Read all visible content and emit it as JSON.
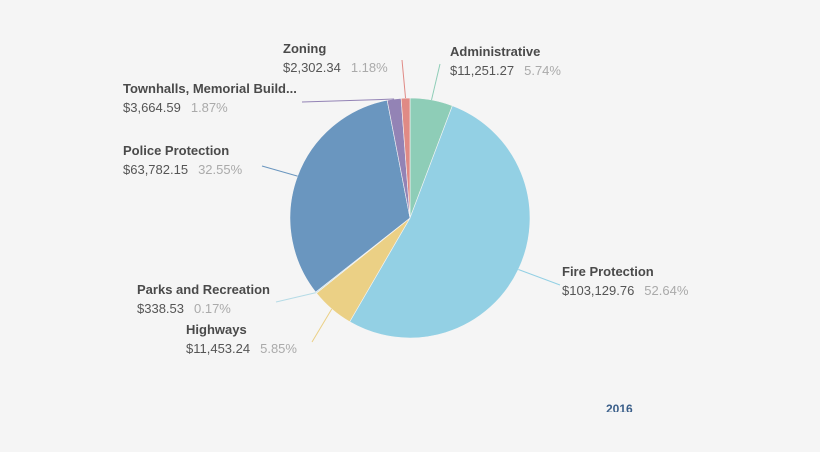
{
  "chart_data": {
    "type": "pie",
    "footer": "2016",
    "slices": [
      {
        "name": "Administrative",
        "value": "$11,251.27",
        "amount": 11251.27,
        "percent": "5.74%",
        "pct": 5.74,
        "color": "#8ecdb7"
      },
      {
        "name": "Fire Protection",
        "value": "$103,129.76",
        "amount": 103129.76,
        "percent": "52.64%",
        "pct": 52.64,
        "color": "#93d0e4"
      },
      {
        "name": "Highways",
        "value": "$11,453.24",
        "amount": 11453.24,
        "percent": "5.85%",
        "pct": 5.85,
        "color": "#ebd085"
      },
      {
        "name": "Parks and Recreation",
        "value": "$338.53",
        "amount": 338.53,
        "percent": "0.17%",
        "pct": 0.17,
        "color": "#b5dbe6"
      },
      {
        "name": "Police Protection",
        "value": "$63,782.15",
        "amount": 63782.15,
        "percent": "32.55%",
        "pct": 32.55,
        "color": "#6a96bf"
      },
      {
        "name": "Townhalls, Memorial Build...",
        "value": "$3,664.59",
        "amount": 3664.59,
        "percent": "1.87%",
        "pct": 1.87,
        "color": "#9383b5"
      },
      {
        "name": "Zoning",
        "value": "$2,302.34",
        "amount": 2302.34,
        "percent": "1.18%",
        "pct": 1.18,
        "color": "#e08a85"
      }
    ]
  }
}
